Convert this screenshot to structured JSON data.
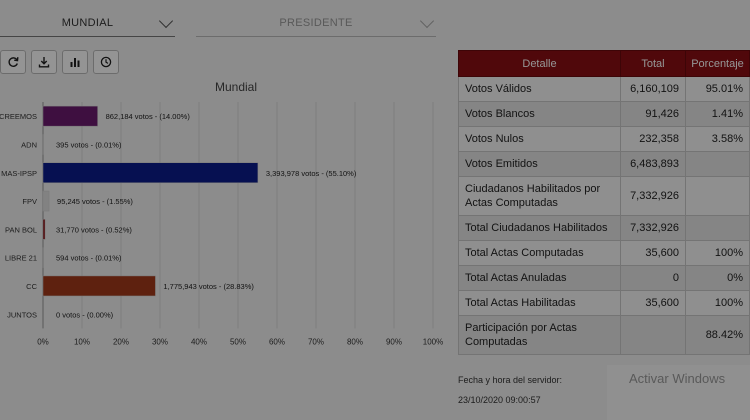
{
  "filters": {
    "region": "MUNDIAL",
    "office": "PRESIDENTE"
  },
  "toolbar": {
    "icons": [
      "refresh-icon",
      "download-icon",
      "bar-chart-icon",
      "clock-icon"
    ]
  },
  "chart_data": {
    "type": "bar",
    "orientation": "horizontal",
    "title": "Mundial",
    "categories": [
      "CREEMOS",
      "ADN",
      "MAS-IPSP",
      "FPV",
      "PAN BOL",
      "LIBRE 21",
      "CC",
      "JUNTOS"
    ],
    "values": [
      14.0,
      0.01,
      55.1,
      1.55,
      0.52,
      0.01,
      28.83,
      0.0
    ],
    "data_labels": [
      "862,184 votos - (14.00%)",
      "395 votos - (0.01%)",
      "3,393,978 votos - (55.10%)",
      "95,245 votos - (1.55%)",
      "31,770 votos - (0.52%)",
      "594 votos - (0.01%)",
      "1,775,943 votos - (28.83%)",
      "0 votos - (0.00%)"
    ],
    "colors": [
      "#6b1a6e",
      "#ffffff",
      "#0b1d8c",
      "#e0e0e0",
      "#8b0f13",
      "#ffffff",
      "#a33a1a",
      "#ffffff"
    ],
    "xlim": [
      0,
      100
    ],
    "xticks": [
      "0%",
      "10%",
      "20%",
      "30%",
      "40%",
      "50%",
      "60%",
      "70%",
      "80%",
      "90%",
      "100%"
    ],
    "grid": true
  },
  "table": {
    "headers": [
      "Detalle",
      "Total",
      "Porcentaje"
    ],
    "rows": [
      [
        "Votos Válidos",
        "6,160,109",
        "95.01%"
      ],
      [
        "Votos Blancos",
        "91,426",
        "1.41%"
      ],
      [
        "Votos Nulos",
        "232,358",
        "3.58%"
      ],
      [
        "Votos Emitidos",
        "6,483,893",
        ""
      ],
      [
        "Ciudadanos Habilitados por Actas Computadas",
        "7,332,926",
        ""
      ],
      [
        "Total Ciudadanos Habilitados",
        "7,332,926",
        ""
      ],
      [
        "Total Actas Computadas",
        "35,600",
        "100%"
      ],
      [
        "Total Actas Anuladas",
        "0",
        "0%"
      ],
      [
        "Total Actas Habilitadas",
        "35,600",
        "100%"
      ],
      [
        "Participación por Actas Computadas",
        "",
        "88.42%"
      ]
    ]
  },
  "server": {
    "label": "Fecha y hora del servidor:",
    "datetime": "23/10/2020 09:00:57"
  },
  "watermark": {
    "text": "Activar Windows"
  }
}
